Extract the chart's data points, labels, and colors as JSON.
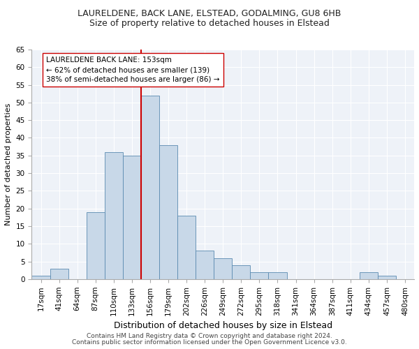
{
  "title1": "LAURELDENE, BACK LANE, ELSTEAD, GODALMING, GU8 6HB",
  "title2": "Size of property relative to detached houses in Elstead",
  "xlabel": "Distribution of detached houses by size in Elstead",
  "ylabel": "Number of detached properties",
  "footnote1": "Contains HM Land Registry data © Crown copyright and database right 2024.",
  "footnote2": "Contains public sector information licensed under the Open Government Licence v3.0.",
  "bin_labels": [
    "17sqm",
    "41sqm",
    "64sqm",
    "87sqm",
    "110sqm",
    "133sqm",
    "156sqm",
    "179sqm",
    "202sqm",
    "226sqm",
    "249sqm",
    "272sqm",
    "295sqm",
    "318sqm",
    "341sqm",
    "364sqm",
    "387sqm",
    "411sqm",
    "434sqm",
    "457sqm",
    "480sqm"
  ],
  "bar_values": [
    1,
    3,
    0,
    19,
    36,
    35,
    52,
    38,
    18,
    8,
    6,
    4,
    2,
    2,
    0,
    0,
    0,
    0,
    2,
    1,
    0
  ],
  "bar_color": "#c8d8e8",
  "bar_edge_color": "#5a8ab0",
  "vline_color": "#cc0000",
  "annotation_box_text": "LAURELDENE BACK LANE: 153sqm\n← 62% of detached houses are smaller (139)\n38% of semi-detached houses are larger (86) →",
  "ylim": [
    0,
    65
  ],
  "yticks": [
    0,
    5,
    10,
    15,
    20,
    25,
    30,
    35,
    40,
    45,
    50,
    55,
    60,
    65
  ],
  "bg_color": "#eef2f8",
  "grid_color": "#ffffff",
  "title1_fontsize": 9,
  "title2_fontsize": 9,
  "xlabel_fontsize": 9,
  "ylabel_fontsize": 8,
  "tick_fontsize": 7.5,
  "annotation_fontsize": 7.5,
  "footnote_fontsize": 6.5
}
